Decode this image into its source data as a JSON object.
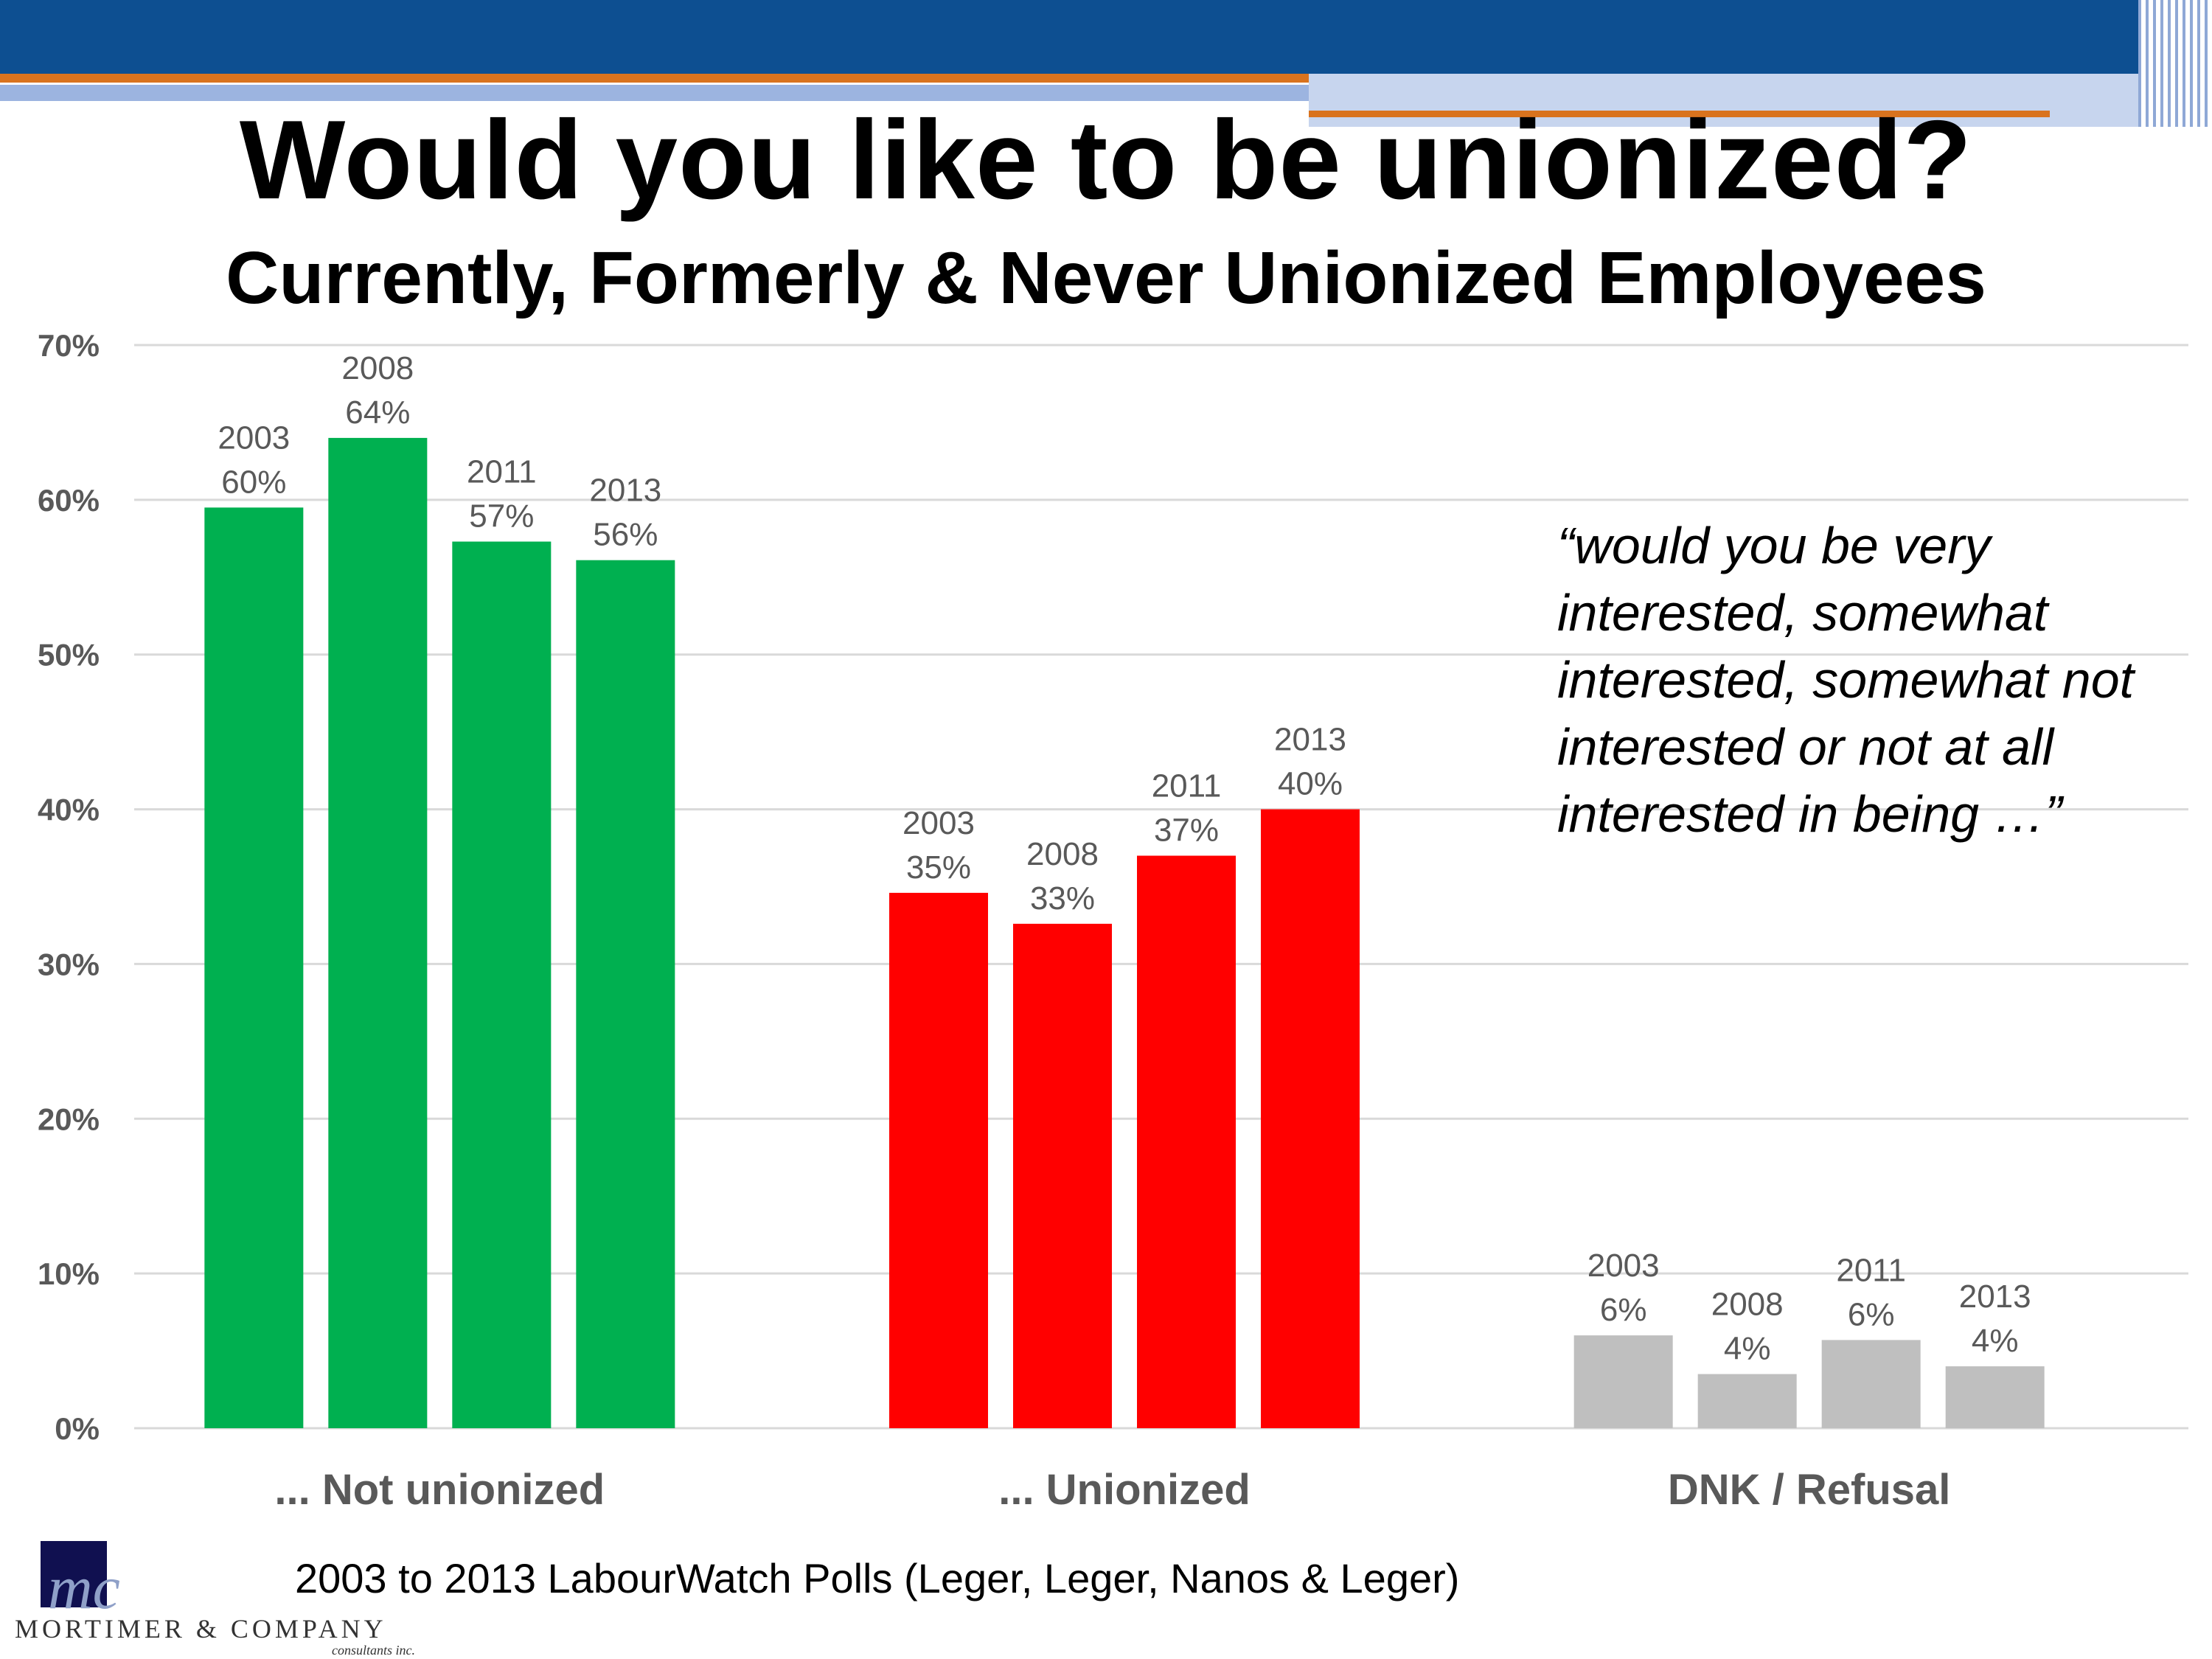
{
  "slide": {
    "title": "Would you like to be unionized?",
    "subtitle": "Currently, Formerly & Never Unionized Employees",
    "note": "“would you be very interested, somewhat interested, somewhat not interested or not at all interested in being …”",
    "source": "2003 to 2013 LabourWatch Polls (Leger, Leger, Nanos & Leger)",
    "logo": {
      "name": "MORTIMER & COMPANY",
      "sub": "consultants inc.",
      "mark": "mc"
    }
  },
  "colors": {
    "Not unionized": "#00b050",
    "Unionized": "#ff0000",
    "DNK / Refusal": "#bfbfbf",
    "header": "#0d4f91",
    "accent": "#d9731e"
  },
  "chart_data": {
    "type": "bar",
    "categories": [
      "... Not unionized",
      "... Unionized",
      "DNK / Refusal"
    ],
    "bar_labels": [
      "2003",
      "2008",
      "2011",
      "2013"
    ],
    "groups": [
      {
        "category": "... Not unionized",
        "color": "#00b050",
        "values": [
          59.5,
          64,
          57.3,
          56.1
        ],
        "labels": [
          "60%",
          "64%",
          "57%",
          "56%"
        ]
      },
      {
        "category": "... Unionized",
        "color": "#ff0000",
        "values": [
          34.6,
          32.6,
          37,
          40
        ],
        "labels": [
          "35%",
          "33%",
          "37%",
          "40%"
        ]
      },
      {
        "category": "DNK / Refusal",
        "color": "#bfbfbf",
        "values": [
          6,
          3.5,
          5.7,
          4
        ],
        "labels": [
          "6%",
          "4%",
          "6%",
          "4%"
        ]
      }
    ],
    "yticks": [
      "0%",
      "10%",
      "20%",
      "30%",
      "40%",
      "50%",
      "60%",
      "70%"
    ],
    "ylim": [
      0,
      70
    ],
    "grid": true
  }
}
